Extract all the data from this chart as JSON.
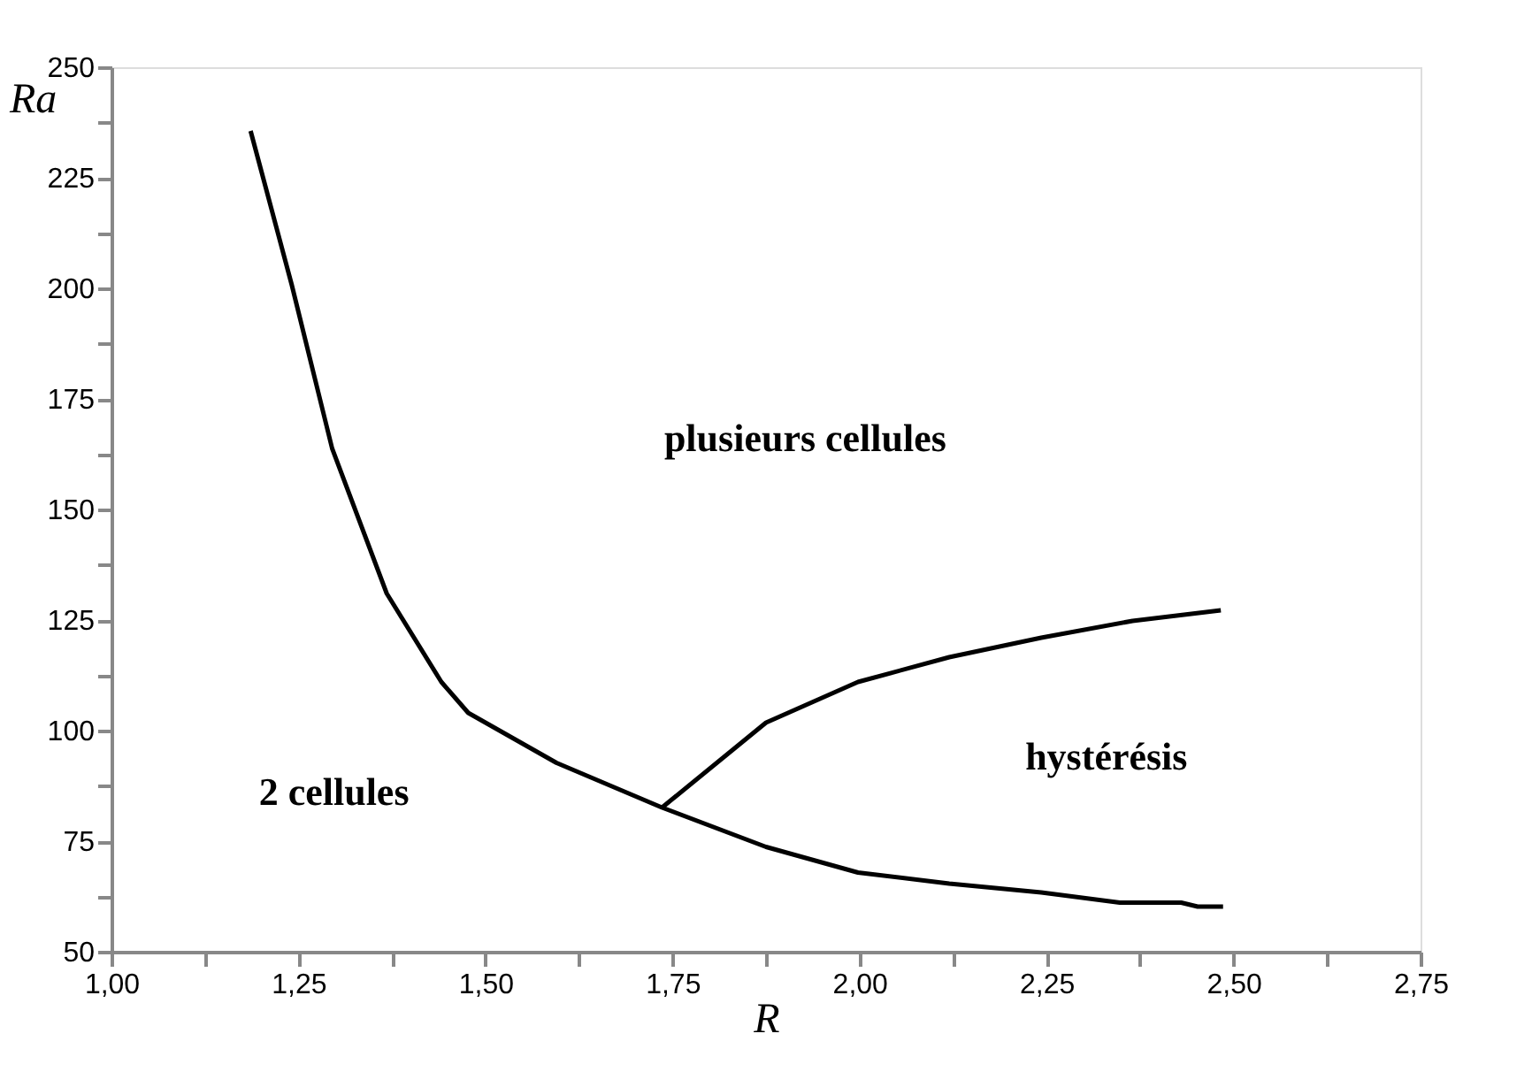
{
  "chart_data": {
    "type": "line",
    "xlabel": "R",
    "ylabel": "Ra",
    "xlim": [
      1.0,
      2.75
    ],
    "ylim": [
      50,
      250
    ],
    "xticks": [
      {
        "value": 1.0,
        "label": "1,00"
      },
      {
        "value": 1.125,
        "label": null
      },
      {
        "value": 1.25,
        "label": "1,25"
      },
      {
        "value": 1.375,
        "label": null
      },
      {
        "value": 1.5,
        "label": "1,50"
      },
      {
        "value": 1.625,
        "label": null
      },
      {
        "value": 1.75,
        "label": "1,75"
      },
      {
        "value": 1.875,
        "label": null
      },
      {
        "value": 2.0,
        "label": "2,00"
      },
      {
        "value": 2.125,
        "label": null
      },
      {
        "value": 2.25,
        "label": "2,25"
      },
      {
        "value": 2.375,
        "label": null
      },
      {
        "value": 2.5,
        "label": "2,50"
      },
      {
        "value": 2.625,
        "label": null
      },
      {
        "value": 2.75,
        "label": "2,75"
      }
    ],
    "yticks": [
      50,
      {
        "value": 62.5,
        "label": null
      },
      75,
      {
        "value": 87.5,
        "label": null
      },
      100,
      {
        "value": 112.5,
        "label": null
      },
      125,
      {
        "value": 137.5,
        "label": null
      },
      150,
      {
        "value": 162.5,
        "label": null
      },
      175,
      {
        "value": 187.5,
        "label": null
      },
      200,
      {
        "value": 212.5,
        "label": null
      },
      225,
      {
        "value": 237.5,
        "label": null
      },
      250
    ],
    "grid": false,
    "marker": "none",
    "line_style": "solid",
    "series": [
      {
        "color": "#000000",
        "x": [
          1.186,
          1.241,
          1.295,
          1.368,
          1.441,
          1.477,
          1.595,
          1.736,
          1.875,
          1.998,
          2.12,
          2.243,
          2.348,
          2.43,
          2.452,
          2.486
        ],
        "values": [
          235.6,
          200.8,
          163.8,
          131,
          111,
          104,
          92.7,
          82.6,
          73.7,
          67.9,
          65.4,
          63.4,
          61.1,
          61.1,
          60.2,
          60.2
        ]
      },
      {
        "color": "#000000",
        "x": [
          1.736,
          1.875,
          1.998,
          2.12,
          2.243,
          2.365,
          2.483
        ],
        "values": [
          82.6,
          101.8,
          111,
          116.6,
          121,
          124.8,
          127.2
        ]
      }
    ],
    "annotations": [
      "plusieurs cellules",
      "2 cellules",
      "hystérésis"
    ]
  }
}
